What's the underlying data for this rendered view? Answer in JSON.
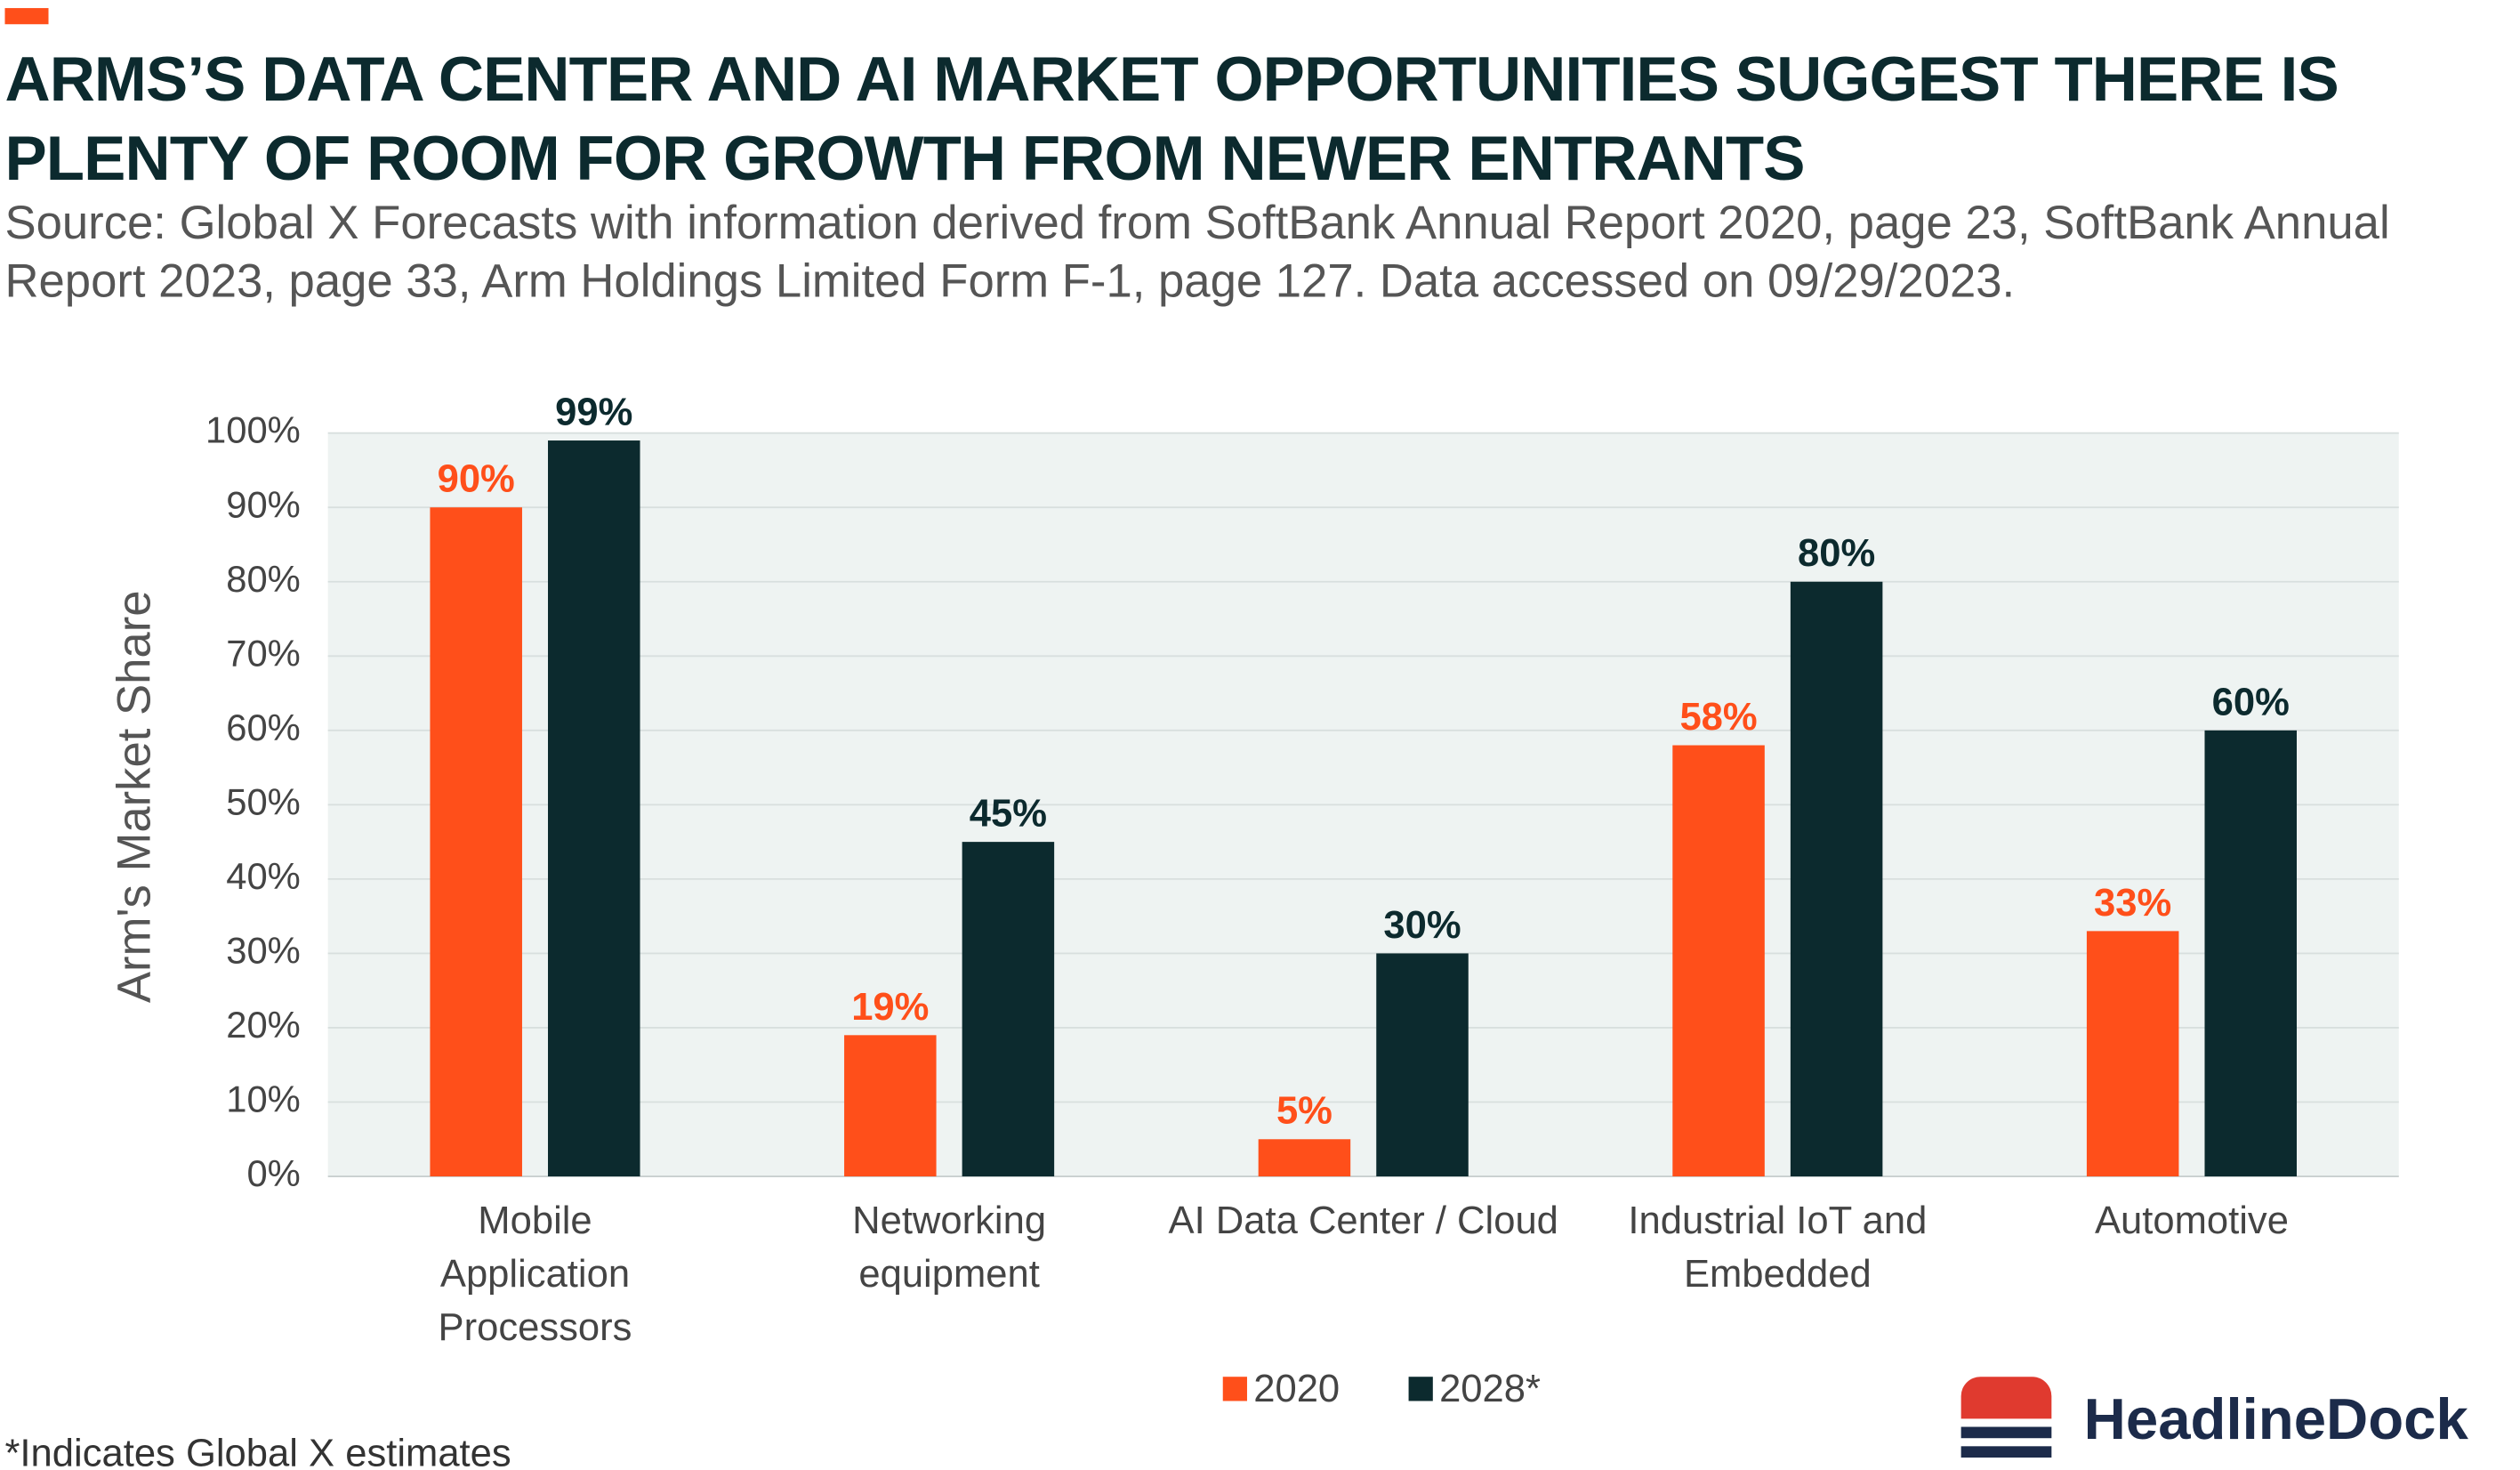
{
  "chart_data": {
    "type": "bar",
    "title": [
      "ARMS’S DATA CENTER AND AI MARKET OPPORTUNITIES SUGGEST THERE IS",
      "PLENTY OF ROOM FOR GROWTH FROM NEWER ENTRANTS"
    ],
    "subtitle": [
      "Source: Global X Forecasts with information derived from SoftBank Annual Report 2020, page 23, SoftBank Annual",
      "Report 2023, page 33, Arm Holdings Limited Form F-1, page 127. Data accessed on 09/29/2023."
    ],
    "y_label": "Arm's Market Share",
    "categories": [
      [
        "Mobile",
        "Application",
        "Processors"
      ],
      [
        "Networking",
        "equipment"
      ],
      [
        "AI Data Center / Cloud"
      ],
      [
        "Industrial IoT and",
        "Embedded"
      ],
      [
        "Automotive"
      ]
    ],
    "series": [
      {
        "name": "2020",
        "color": "#ff4f1a",
        "values": [
          90,
          19,
          5,
          58,
          33
        ],
        "value_labels": [
          "90%",
          "19%",
          "5%",
          "58%",
          "33%"
        ]
      },
      {
        "name": "2028*",
        "color": "#0c2a2e",
        "values": [
          99,
          45,
          30,
          80,
          60
        ],
        "value_labels": [
          "99%",
          "45%",
          "30%",
          "80%",
          "60%"
        ]
      }
    ],
    "ylim": [
      0,
      100
    ],
    "yticks": [
      {
        "value": 0,
        "label": "0%"
      },
      {
        "value": 10,
        "label": "10%"
      },
      {
        "value": 20,
        "label": "20%"
      },
      {
        "value": 30,
        "label": "30%"
      },
      {
        "value": 40,
        "label": "40%"
      },
      {
        "value": 50,
        "label": "50%"
      },
      {
        "value": 60,
        "label": "60%"
      },
      {
        "value": 70,
        "label": "70%"
      },
      {
        "value": 80,
        "label": "80%"
      },
      {
        "value": 90,
        "label": "90%"
      },
      {
        "value": 100,
        "label": "100%"
      }
    ],
    "grid": true,
    "legend": "bottom",
    "footnote": "*Indicates Global X estimates",
    "logo": "HeadlineDock"
  }
}
